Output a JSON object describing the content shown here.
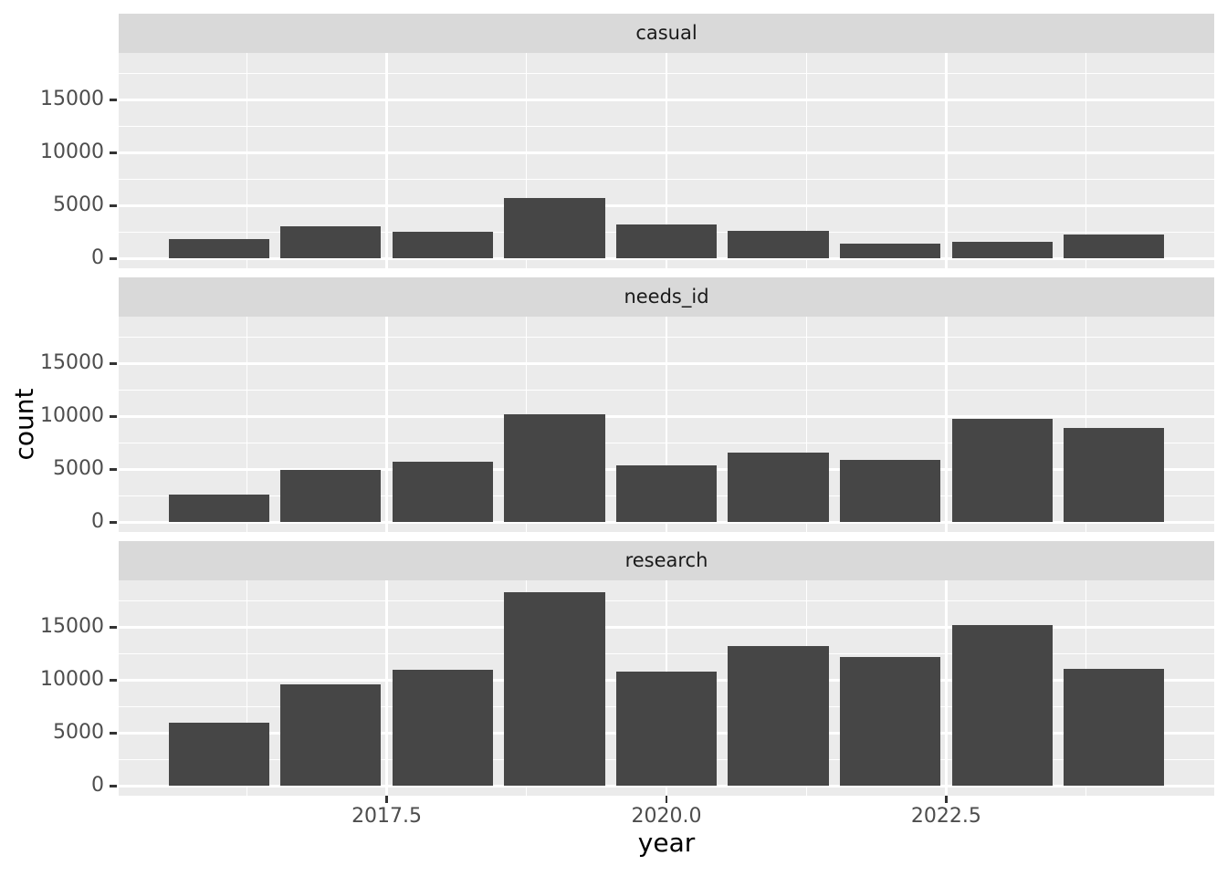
{
  "chart_data": {
    "type": "bar",
    "title": "",
    "xlabel": "year",
    "ylabel": "count",
    "facet_layout": "rows",
    "x": [
      2016,
      2017,
      2018,
      2019,
      2020,
      2021,
      2022,
      2023,
      2024
    ],
    "bar_width": 0.9,
    "facets": [
      {
        "label": "casual",
        "values": [
          1850,
          3050,
          2500,
          5700,
          3250,
          2600,
          1400,
          1550,
          2250
        ]
      },
      {
        "label": "needs_id",
        "values": [
          2600,
          4900,
          5700,
          10200,
          5400,
          6600,
          5900,
          9800,
          8900
        ]
      },
      {
        "label": "research",
        "values": [
          6000,
          9600,
          11000,
          18300,
          10800,
          13200,
          12200,
          15200,
          11100
        ]
      }
    ],
    "x_ticks": {
      "values": [
        2017.5,
        2020.0,
        2022.5
      ],
      "labels": [
        "2017.5",
        "2020.0",
        "2022.5"
      ]
    },
    "y_ticks": {
      "values": [
        0,
        5000,
        10000,
        15000
      ],
      "labels": [
        "0",
        "5000",
        "10000",
        "15000"
      ]
    },
    "x_minor": [
      2016.25,
      2018.75,
      2021.25,
      2023.75
    ],
    "y_minor": [
      2500,
      7500,
      12500,
      17500
    ],
    "xlim": [
      2015.105,
      2024.895
    ],
    "ylim": [
      -925,
      19425
    ],
    "grid": "major+minor",
    "legend": "none"
  },
  "style": {
    "background": "#FFFFFF",
    "panel_bg": "#EBEBEB",
    "strip_bg": "#D9D9D9",
    "strip_text_color": "#1A1A1A",
    "bar_fill": "#464646",
    "grid_color": "#FFFFFF",
    "axis_tick_color": "#333333",
    "axis_text_color": "#4D4D4D",
    "axis_title_color": "#000000"
  }
}
